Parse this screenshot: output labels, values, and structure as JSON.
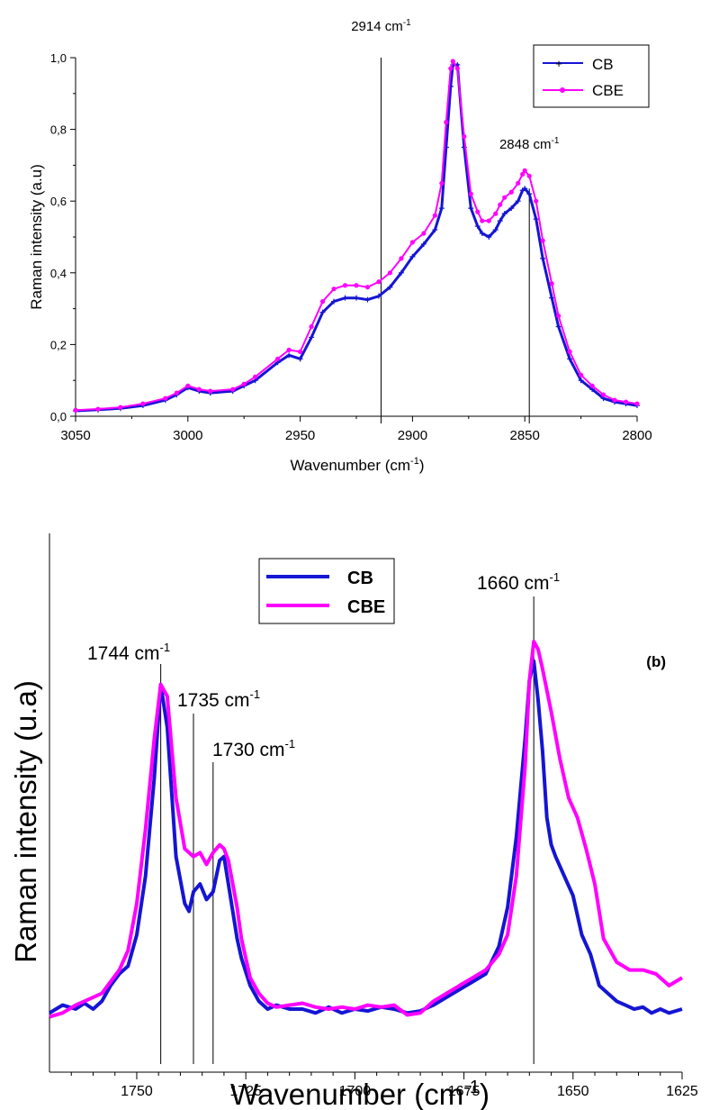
{
  "colors": {
    "cb": "#1515d4",
    "cbe": "#ff00ff",
    "axis": "#000000"
  },
  "chart_data": [
    {
      "type": "line",
      "xlabel": "Wavenumber (cm",
      "xlabel_sup": "-1",
      "xlabel_tail": ")",
      "ylabel": "Raman intensity (a.u)",
      "xlim": [
        3050,
        2800
      ],
      "ylim": [
        0,
        1.0
      ],
      "x_ticks": [
        3050,
        3000,
        2950,
        2900,
        2850,
        2800
      ],
      "x_tick_labels": [
        "3050",
        "3000",
        "2950",
        "2900",
        "2850",
        "2800"
      ],
      "y_ticks": [
        0,
        0.2,
        0.4,
        0.6,
        0.8,
        1.0
      ],
      "y_tick_labels": [
        "0,0",
        "0,2",
        "0,4",
        "0,6",
        "0,8",
        "1,0"
      ],
      "legend_position": "top-right",
      "series": [
        {
          "name": "CB",
          "marker": "plus",
          "x": [
            3050,
            3040,
            3030,
            3020,
            3010,
            3005,
            3000,
            2995,
            2990,
            2980,
            2975,
            2970,
            2960,
            2955,
            2950,
            2945,
            2940,
            2935,
            2930,
            2925,
            2920,
            2915,
            2910,
            2905,
            2900,
            2895,
            2890,
            2887,
            2885,
            2883,
            2882,
            2880,
            2877,
            2874,
            2871,
            2869,
            2866,
            2863,
            2861,
            2859,
            2856,
            2853,
            2851,
            2850,
            2848,
            2845,
            2842,
            2838,
            2835,
            2830,
            2825,
            2820,
            2815,
            2810,
            2805,
            2800
          ],
          "y": [
            0.015,
            0.018,
            0.022,
            0.03,
            0.045,
            0.06,
            0.08,
            0.07,
            0.065,
            0.07,
            0.085,
            0.1,
            0.15,
            0.17,
            0.16,
            0.22,
            0.29,
            0.32,
            0.33,
            0.33,
            0.325,
            0.335,
            0.36,
            0.4,
            0.445,
            0.48,
            0.52,
            0.58,
            0.75,
            0.92,
            0.98,
            0.98,
            0.75,
            0.58,
            0.53,
            0.51,
            0.5,
            0.52,
            0.545,
            0.565,
            0.58,
            0.6,
            0.63,
            0.635,
            0.62,
            0.55,
            0.44,
            0.33,
            0.25,
            0.16,
            0.1,
            0.075,
            0.05,
            0.04,
            0.035,
            0.03
          ]
        },
        {
          "name": "CBE",
          "marker": "circle",
          "x": [
            3050,
            3040,
            3030,
            3020,
            3010,
            3005,
            3000,
            2995,
            2990,
            2980,
            2975,
            2970,
            2960,
            2955,
            2950,
            2945,
            2940,
            2935,
            2930,
            2925,
            2920,
            2915,
            2910,
            2905,
            2900,
            2895,
            2890,
            2887,
            2885,
            2883,
            2882,
            2880,
            2877,
            2874,
            2871,
            2869,
            2866,
            2863,
            2861,
            2859,
            2856,
            2853,
            2851,
            2850,
            2848,
            2845,
            2842,
            2838,
            2835,
            2830,
            2825,
            2820,
            2815,
            2810,
            2805,
            2800
          ],
          "y": [
            0.017,
            0.02,
            0.025,
            0.035,
            0.05,
            0.065,
            0.085,
            0.075,
            0.07,
            0.075,
            0.09,
            0.11,
            0.16,
            0.185,
            0.18,
            0.25,
            0.32,
            0.355,
            0.365,
            0.365,
            0.36,
            0.375,
            0.4,
            0.44,
            0.485,
            0.51,
            0.56,
            0.65,
            0.82,
            0.97,
            0.99,
            0.97,
            0.78,
            0.62,
            0.57,
            0.545,
            0.545,
            0.565,
            0.59,
            0.61,
            0.625,
            0.65,
            0.675,
            0.685,
            0.67,
            0.6,
            0.49,
            0.37,
            0.28,
            0.18,
            0.115,
            0.085,
            0.06,
            0.045,
            0.04,
            0.035
          ]
        }
      ],
      "annotations": [
        {
          "x": 2914,
          "label": "2914 cm",
          "sup": "-1",
          "line_top": 1.0
        },
        {
          "x": 2848,
          "label": "2848 cm",
          "sup": "-1",
          "line_top": 0.635
        }
      ]
    },
    {
      "type": "line",
      "panel_label": "(b)",
      "xlabel": "Wavenumber (cm",
      "xlabel_sup": "-1",
      "xlabel_tail": ")",
      "ylabel": "Raman intensity (u.a)",
      "xlim": [
        1770,
        1625
      ],
      "ylim": [
        0,
        1.0
      ],
      "x_ticks": [
        1750,
        1725,
        1700,
        1675,
        1650,
        1625
      ],
      "x_tick_labels": [
        "1750",
        "1725",
        "1700",
        "1675",
        "1650",
        "1625"
      ],
      "legend_position": "top-left",
      "series": [
        {
          "name": "CB",
          "x": [
            1770,
            1767,
            1764,
            1762,
            1760,
            1758,
            1756,
            1754,
            1752,
            1750,
            1748,
            1746,
            1744.5,
            1743,
            1741,
            1739,
            1738,
            1737,
            1735.5,
            1734,
            1732.5,
            1731,
            1730,
            1729,
            1727,
            1726,
            1724,
            1722,
            1720,
            1718,
            1715,
            1712,
            1709,
            1706,
            1703,
            1700,
            1697,
            1694,
            1691,
            1688,
            1685,
            1682,
            1679,
            1676,
            1673,
            1670,
            1667,
            1665,
            1663,
            1661,
            1660,
            1659,
            1658,
            1657,
            1656,
            1655,
            1654,
            1652,
            1650,
            1648,
            1646,
            1644,
            1642,
            1640,
            1638,
            1636,
            1634,
            1632,
            1630,
            1628,
            1625
          ],
          "y": [
            0.05,
            0.07,
            0.06,
            0.075,
            0.06,
            0.08,
            0.12,
            0.15,
            0.17,
            0.25,
            0.4,
            0.65,
            0.89,
            0.78,
            0.45,
            0.33,
            0.31,
            0.36,
            0.38,
            0.34,
            0.36,
            0.44,
            0.45,
            0.38,
            0.24,
            0.19,
            0.12,
            0.08,
            0.06,
            0.07,
            0.06,
            0.06,
            0.05,
            0.065,
            0.05,
            0.06,
            0.055,
            0.065,
            0.06,
            0.05,
            0.055,
            0.07,
            0.09,
            0.11,
            0.13,
            0.15,
            0.22,
            0.32,
            0.5,
            0.75,
            0.9,
            0.95,
            0.85,
            0.72,
            0.55,
            0.48,
            0.45,
            0.4,
            0.35,
            0.25,
            0.2,
            0.12,
            0.1,
            0.08,
            0.07,
            0.06,
            0.065,
            0.05,
            0.06,
            0.05,
            0.06
          ]
        },
        {
          "name": "CBE",
          "x": [
            1770,
            1767,
            1764,
            1762,
            1760,
            1758,
            1756,
            1754,
            1752,
            1750,
            1748,
            1746,
            1744.5,
            1743,
            1741,
            1739,
            1737,
            1735.5,
            1734,
            1732.5,
            1731,
            1730,
            1729,
            1727,
            1726,
            1724,
            1722,
            1720,
            1718,
            1715,
            1712,
            1709,
            1706,
            1703,
            1700,
            1697,
            1694,
            1691,
            1688,
            1685,
            1682,
            1679,
            1676,
            1673,
            1670,
            1667,
            1665,
            1663,
            1661,
            1660,
            1659,
            1658,
            1657,
            1655,
            1653,
            1651,
            1649,
            1647,
            1645,
            1643,
            1640,
            1637,
            1634,
            1631,
            1628,
            1625
          ],
          "y": [
            0.04,
            0.05,
            0.07,
            0.08,
            0.09,
            0.1,
            0.13,
            0.16,
            0.21,
            0.33,
            0.52,
            0.75,
            0.89,
            0.86,
            0.6,
            0.47,
            0.45,
            0.46,
            0.43,
            0.46,
            0.48,
            0.47,
            0.44,
            0.32,
            0.24,
            0.14,
            0.1,
            0.075,
            0.065,
            0.07,
            0.075,
            0.065,
            0.06,
            0.065,
            0.06,
            0.07,
            0.065,
            0.07,
            0.045,
            0.05,
            0.08,
            0.1,
            0.12,
            0.14,
            0.16,
            0.2,
            0.25,
            0.4,
            0.68,
            0.9,
            1.0,
            0.98,
            0.93,
            0.82,
            0.7,
            0.6,
            0.55,
            0.47,
            0.38,
            0.24,
            0.18,
            0.16,
            0.16,
            0.15,
            0.12,
            0.14
          ]
        }
      ],
      "annotations": [
        {
          "x": 1744.5,
          "label": "1744 cm",
          "sup": "-1",
          "line_top": 0.89
        },
        {
          "x": 1737,
          "label": "1735 cm",
          "sup": "-1",
          "line_top": 0.89
        },
        {
          "x": 1732.5,
          "label": "1730 cm",
          "sup": "-1",
          "line_top": 0.55
        },
        {
          "x": 1659,
          "label": "1660 cm",
          "sup": "-1",
          "line_top": 1.0
        }
      ]
    }
  ]
}
